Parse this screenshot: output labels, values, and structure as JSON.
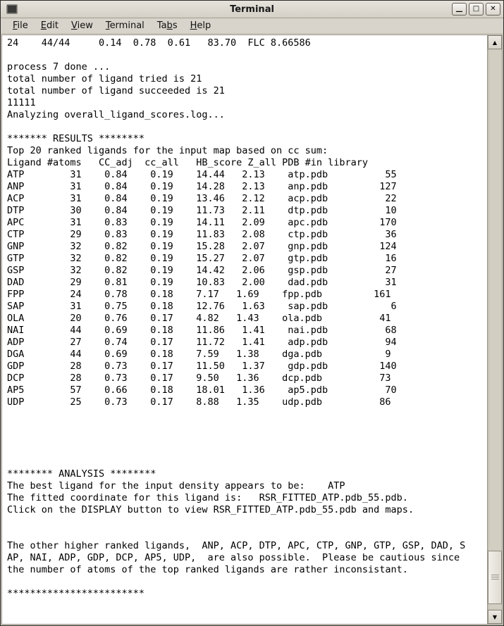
{
  "window": {
    "title": "Terminal",
    "controls": {
      "minimize": "—",
      "maximize": "□",
      "close": "✕"
    }
  },
  "icons": {
    "window_icon": "terminal-icon",
    "scroll_up": "▲",
    "scroll_down": "▼"
  },
  "colors": {
    "frame_bg": "#d8d4cb",
    "terminal_bg": "#ffffff",
    "terminal_fg": "#000000",
    "scrollbar_trough": "#d2cec2",
    "scrollbar_thumb": "#ece9e2"
  },
  "menu": {
    "file": {
      "pre": "",
      "key": "F",
      "post": "ile"
    },
    "edit": {
      "pre": "",
      "key": "E",
      "post": "dit"
    },
    "view": {
      "pre": "",
      "key": "V",
      "post": "iew"
    },
    "terminal": {
      "pre": "",
      "key": "T",
      "post": "erminal"
    },
    "tabs": {
      "pre": "Ta",
      "key": "b",
      "post": "s"
    },
    "help": {
      "pre": "",
      "key": "H",
      "post": "elp"
    }
  },
  "results_table": {
    "title": "Top 20 ranked ligands for the input map based on cc sum:",
    "columns": [
      "Ligand",
      "#atoms",
      "CC_adj",
      "cc_all",
      "HB_score",
      "Z_all",
      "PDB",
      "#in library"
    ],
    "rows": [
      [
        "ATP",
        31,
        0.84,
        0.19,
        14.44,
        2.13,
        "atp.pdb",
        55
      ],
      [
        "ANP",
        31,
        0.84,
        0.19,
        14.28,
        2.13,
        "anp.pdb",
        127
      ],
      [
        "ACP",
        31,
        0.84,
        0.19,
        13.46,
        2.12,
        "acp.pdb",
        22
      ],
      [
        "DTP",
        30,
        0.84,
        0.19,
        11.73,
        2.11,
        "dtp.pdb",
        10
      ],
      [
        "APC",
        31,
        0.83,
        0.19,
        14.11,
        2.09,
        "apc.pdb",
        170
      ],
      [
        "CTP",
        29,
        0.83,
        0.19,
        11.83,
        2.08,
        "ctp.pdb",
        36
      ],
      [
        "GNP",
        32,
        0.82,
        0.19,
        15.28,
        2.07,
        "gnp.pdb",
        124
      ],
      [
        "GTP",
        32,
        0.82,
        0.19,
        15.27,
        2.07,
        "gtp.pdb",
        16
      ],
      [
        "GSP",
        32,
        0.82,
        0.19,
        14.42,
        2.06,
        "gsp.pdb",
        27
      ],
      [
        "DAD",
        29,
        0.81,
        0.19,
        10.83,
        2.0,
        "dad.pdb",
        31
      ],
      [
        "FPP",
        24,
        0.78,
        0.18,
        7.17,
        1.69,
        "fpp.pdb",
        161
      ],
      [
        "SAP",
        31,
        0.75,
        0.18,
        12.76,
        1.63,
        "sap.pdb",
        6
      ],
      [
        "OLA",
        20,
        0.76,
        0.17,
        4.82,
        1.43,
        "ola.pdb",
        41
      ],
      [
        "NAI",
        44,
        0.69,
        0.18,
        11.86,
        1.41,
        "nai.pdb",
        68
      ],
      [
        "ADP",
        27,
        0.74,
        0.17,
        11.72,
        1.41,
        "adp.pdb",
        94
      ],
      [
        "DGA",
        44,
        0.69,
        0.18,
        7.59,
        1.38,
        "dga.pdb",
        9
      ],
      [
        "GDP",
        28,
        0.73,
        0.17,
        11.5,
        1.37,
        "gdp.pdb",
        140
      ],
      [
        "DCP",
        28,
        0.73,
        0.17,
        9.5,
        1.36,
        "dcp.pdb",
        73
      ],
      [
        "AP5",
        57,
        0.66,
        0.18,
        18.01,
        1.36,
        "ap5.pdb",
        70
      ],
      [
        "UDP",
        25,
        0.73,
        0.17,
        8.88,
        1.35,
        "udp.pdb",
        86
      ]
    ]
  },
  "analysis": {
    "best_ligand": "ATP",
    "fitted_coordinate": "RSR_FITTED_ATP.pdb_55.pdb"
  },
  "terminal": {
    "lines": [
      "24    44/44     0.14  0.78  0.61   83.70  FLC 8.66586",
      "",
      "process 7 done ...",
      "total number of ligand tried is 21",
      "total number of ligand succeeded is 21",
      "11111",
      "Analyzing overall_ligand_scores.log...",
      "",
      "******* RESULTS ********",
      "Top 20 ranked ligands for the input map based on cc sum:",
      "Ligand #atoms   CC_adj  cc_all   HB_score Z_all PDB #in library",
      "ATP        31    0.84    0.19    14.44   2.13    atp.pdb          55",
      "ANP        31    0.84    0.19    14.28   2.13    anp.pdb         127",
      "ACP        31    0.84    0.19    13.46   2.12    acp.pdb          22",
      "DTP        30    0.84    0.19    11.73   2.11    dtp.pdb          10",
      "APC        31    0.83    0.19    14.11   2.09    apc.pdb         170",
      "CTP        29    0.83    0.19    11.83   2.08    ctp.pdb          36",
      "GNP        32    0.82    0.19    15.28   2.07    gnp.pdb         124",
      "GTP        32    0.82    0.19    15.27   2.07    gtp.pdb          16",
      "GSP        32    0.82    0.19    14.42   2.06    gsp.pdb          27",
      "DAD        29    0.81    0.19    10.83   2.00    dad.pdb          31",
      "FPP        24    0.78    0.18    7.17   1.69    fpp.pdb         161",
      "SAP        31    0.75    0.18    12.76   1.63    sap.pdb           6",
      "OLA        20    0.76    0.17    4.82   1.43    ola.pdb          41",
      "NAI        44    0.69    0.18    11.86   1.41    nai.pdb          68",
      "ADP        27    0.74    0.17    11.72   1.41    adp.pdb          94",
      "DGA        44    0.69    0.18    7.59   1.38    dga.pdb           9",
      "GDP        28    0.73    0.17    11.50   1.37    gdp.pdb         140",
      "DCP        28    0.73    0.17    9.50   1.36    dcp.pdb          73",
      "AP5        57    0.66    0.18    18.01   1.36    ap5.pdb          70",
      "UDP        25    0.73    0.17    8.88   1.35    udp.pdb          86",
      "",
      "",
      "",
      "",
      "",
      "******** ANALYSIS ********",
      "The best ligand for the input density appears to be:    ATP",
      "The fitted coordinate for this ligand is:   RSR_FITTED_ATP.pdb_55.pdb.",
      "Click on the DISPLAY button to view RSR_FITTED_ATP.pdb_55.pdb and maps.",
      "",
      "",
      "The other higher ranked ligands,  ANP, ACP, DTP, APC, CTP, GNP, GTP, GSP, DAD, S",
      "AP, NAI, ADP, GDP, DCP, AP5, UDP,  are also possible.  Please be cautious since",
      "the number of atoms of the top ranked ligands are rather inconsistant.",
      "",
      "************************",
      ""
    ]
  }
}
